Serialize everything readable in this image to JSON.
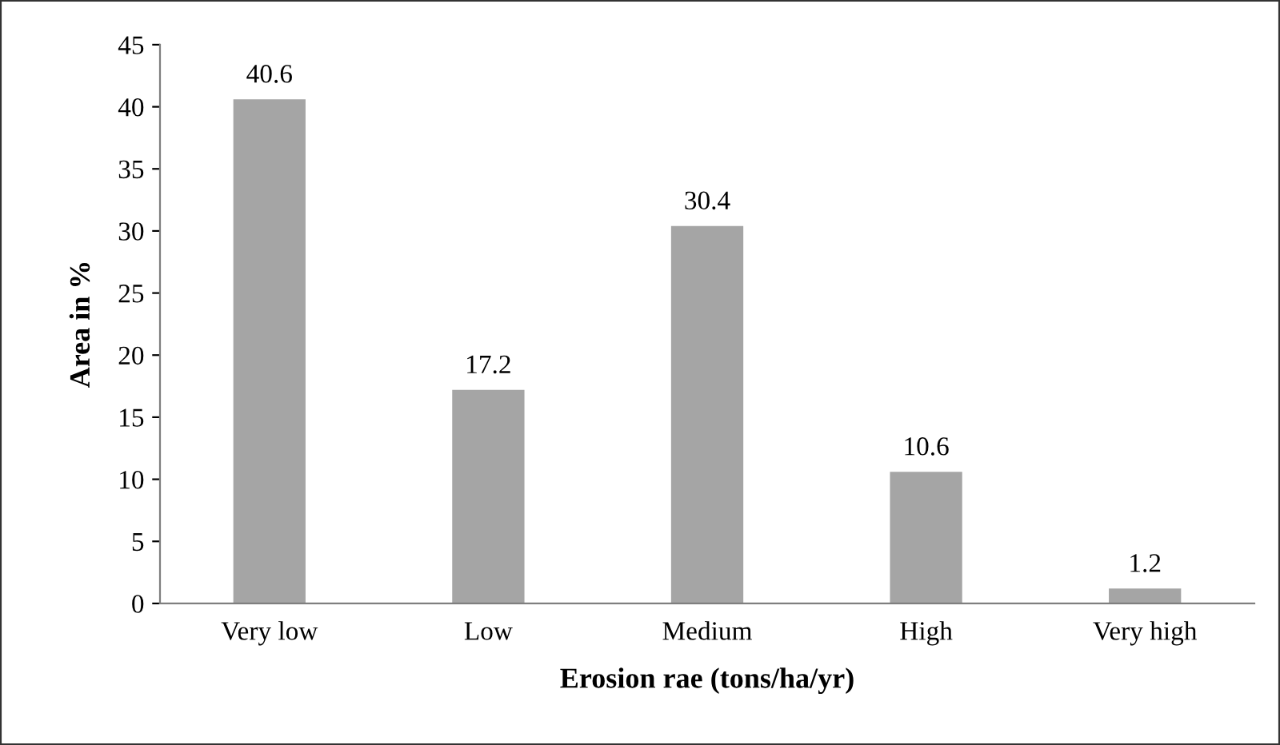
{
  "chart_data": {
    "type": "bar",
    "categories": [
      "Very low",
      "Low",
      "Medium",
      "High",
      "Very high"
    ],
    "values": [
      40.6,
      17.2,
      30.4,
      10.6,
      1.2
    ],
    "color": "#a5a5a5",
    "xlabel": "Erosion rae (tons/ha/yr)",
    "ylabel": "Area in %",
    "ylim": [
      0,
      45
    ],
    "yticks": [
      0,
      5,
      10,
      15,
      20,
      25,
      30,
      35,
      40,
      45
    ],
    "data_labels": true,
    "grid": false,
    "legend": false
  }
}
